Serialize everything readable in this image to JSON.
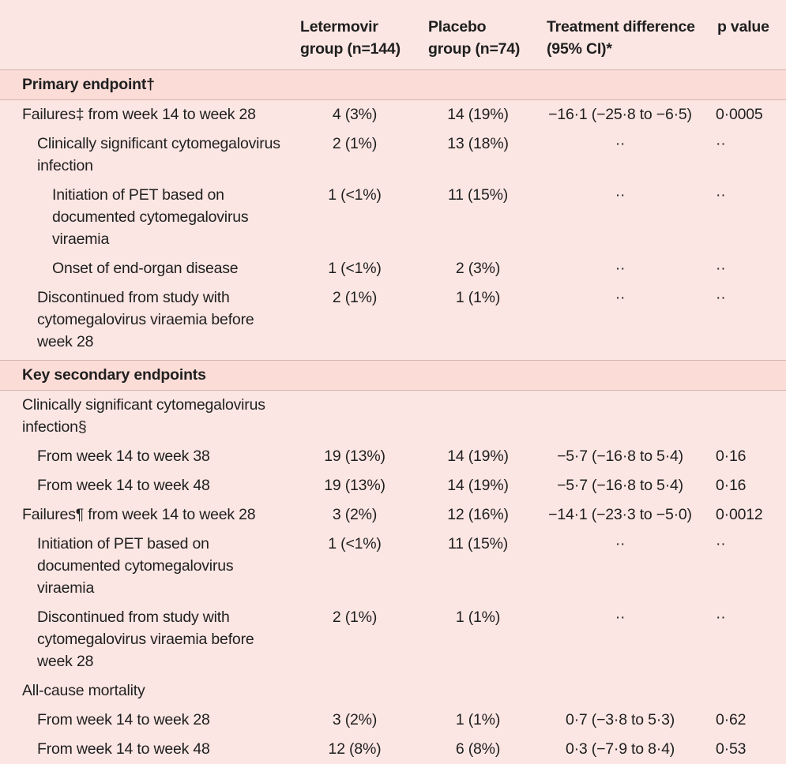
{
  "table": {
    "headers": [
      "",
      "Letermovir group (n=144)",
      "Placebo group (n=74)",
      "Treatment difference (95% CI)*",
      "p value"
    ],
    "sections": [
      {
        "title": "Primary endpoint†",
        "rows": [
          {
            "level": 0,
            "label": "Failures‡ from week 14 to week 28",
            "letermovir": "4 (3%)",
            "placebo": "14 (19%)",
            "difference": "−16·1 (−25·8 to −6·5)",
            "p": "0·0005"
          },
          {
            "level": 1,
            "label": "Clinically significant cytomegalovirus infection",
            "letermovir": "2 (1%)",
            "placebo": "13 (18%)",
            "difference": "··",
            "p": "··"
          },
          {
            "level": 2,
            "label": "Initiation of PET based on documented cytomegalovirus viraemia",
            "letermovir": "1 (<1%)",
            "placebo": "11 (15%)",
            "difference": "··",
            "p": "··"
          },
          {
            "level": 2,
            "label": "Onset of end-organ disease",
            "letermovir": "1 (<1%)",
            "placebo": "2 (3%)",
            "difference": "··",
            "p": "··"
          },
          {
            "level": 1,
            "label": "Discontinued from study with cytomegalovirus viraemia before week 28",
            "letermovir": "2 (1%)",
            "placebo": "1 (1%)",
            "difference": "··",
            "p": "··"
          }
        ]
      },
      {
        "title": "Key secondary endpoints",
        "rows": [
          {
            "level": 0,
            "label": "Clinically significant cytomegalovirus infection§",
            "letermovir": "",
            "placebo": "",
            "difference": "",
            "p": ""
          },
          {
            "level": 1,
            "label": "From week 14 to week 38",
            "letermovir": "19 (13%)",
            "placebo": "14 (19%)",
            "difference": "−5·7 (−16·8 to 5·4)",
            "p": "0·16"
          },
          {
            "level": 1,
            "label": "From week 14 to week 48",
            "letermovir": "19 (13%)",
            "placebo": "14 (19%)",
            "difference": "−5·7 (−16·8 to 5·4)",
            "p": "0·16"
          },
          {
            "level": 0,
            "label": "Failures¶ from week 14 to week 28",
            "letermovir": "3 (2%)",
            "placebo": "12 (16%)",
            "difference": "−14·1 (−23·3 to −5·0)",
            "p": "0·0012"
          },
          {
            "level": 1,
            "label": "Initiation of PET based on documented cytomegalovirus viraemia",
            "letermovir": "1 (<1%)",
            "placebo": "11 (15%)",
            "difference": "··",
            "p": "··"
          },
          {
            "level": 1,
            "label": "Discontinued from study with cytomegalovirus viraemia before week 28",
            "letermovir": "2 (1%)",
            "placebo": "1 (1%)",
            "difference": "··",
            "p": "··"
          },
          {
            "level": 0,
            "label": "All-cause mortality",
            "letermovir": "",
            "placebo": "",
            "difference": "",
            "p": ""
          },
          {
            "level": 1,
            "label": "From week 14 to week 28",
            "letermovir": "3 (2%)",
            "placebo": "1 (1%)",
            "difference": "0·7 (−3·8 to 5·3)",
            "p": "0·62"
          },
          {
            "level": 1,
            "label": "From week 14 to week 48",
            "letermovir": "12 (8%)",
            "placebo": "6 (8%)",
            "difference": "0·3 (−7·9 to 8·4)",
            "p": "0·53"
          }
        ]
      }
    ]
  },
  "colors": {
    "background": "#fbe6e3",
    "section_band": "#fcdcd7",
    "rule": "#d4b4ae",
    "text": "#1f1f1f"
  }
}
